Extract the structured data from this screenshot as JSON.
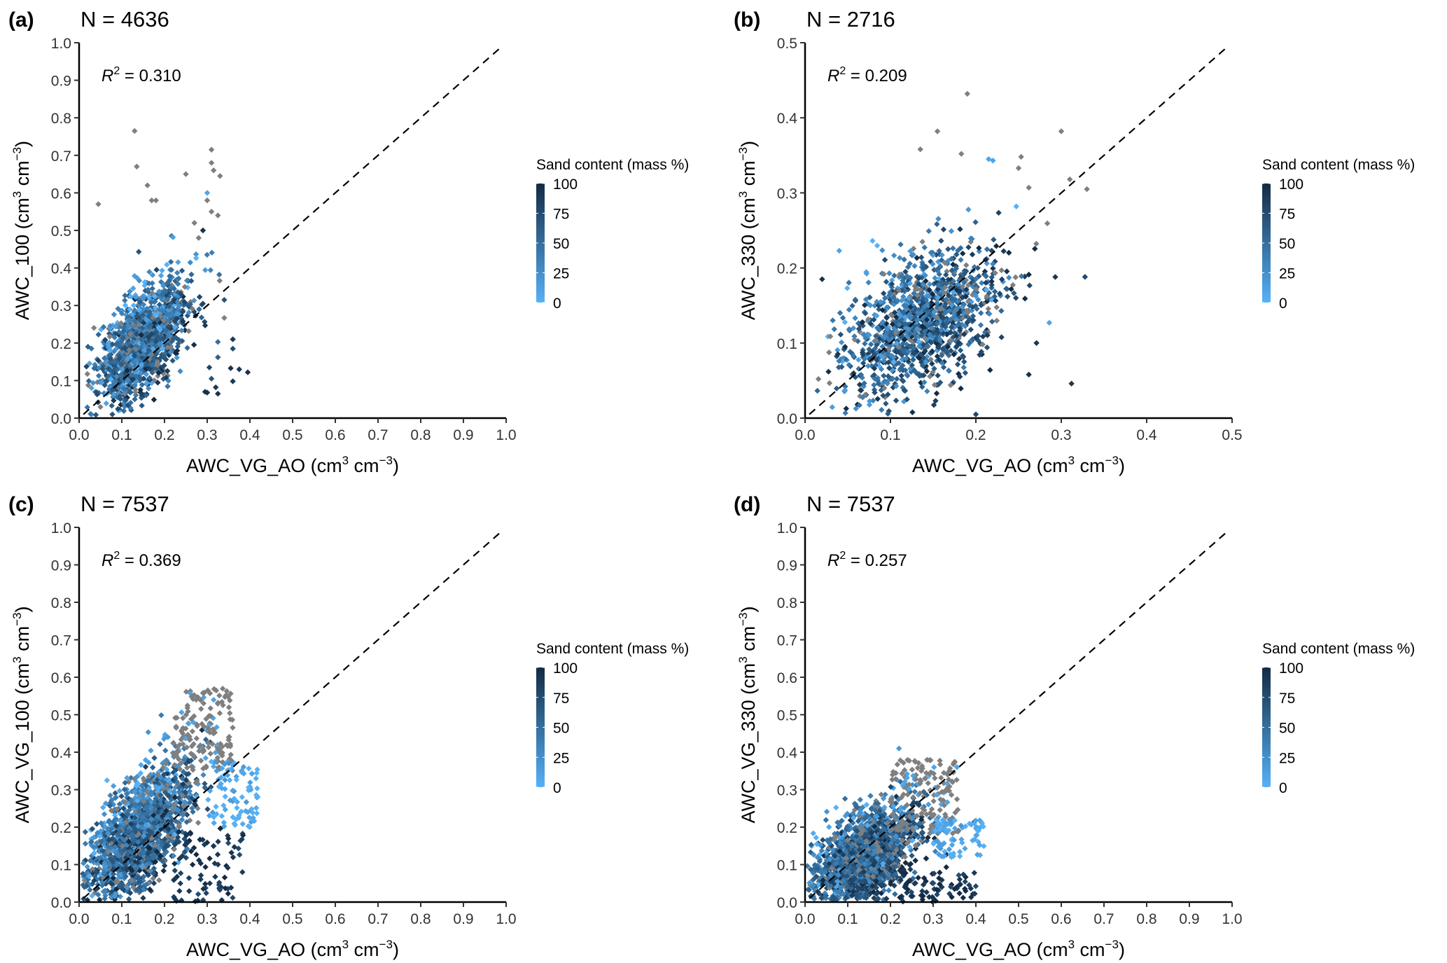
{
  "figure": {
    "colorbar": {
      "title": "Sand content (mass %)",
      "ticks": [
        "100",
        "75",
        "50",
        "25",
        "0"
      ],
      "tick_values": [
        100,
        75,
        50,
        25,
        0
      ],
      "low_color": "#56B1F7",
      "high_color": "#132B43",
      "na_color": "#7F7F7F"
    },
    "reference_line": "1:1 dashed"
  },
  "chart_data": [
    {
      "type": "scatter",
      "panel": "(a)",
      "n_label": "N = 4636",
      "r2_label": "= 0.310",
      "r2": 0.31,
      "xlabel": "AWC_VG_AO (cm³ cm⁻³)",
      "ylabel": "AWC_100 (cm³ cm⁻³)",
      "xlim": [
        0,
        1.0
      ],
      "ylim": [
        0,
        1.0
      ],
      "xticks": [
        "0.0",
        "0.1",
        "0.2",
        "0.3",
        "0.4",
        "0.5",
        "0.6",
        "0.7",
        "0.8",
        "0.9",
        "1.0"
      ],
      "yticks": [
        "0.0",
        "0.1",
        "0.2",
        "0.3",
        "0.4",
        "0.5",
        "0.6",
        "0.7",
        "0.8",
        "0.9",
        "1.0"
      ],
      "grid": false,
      "legend": "right",
      "cloud": {
        "x_mean": 0.15,
        "y_mean": 0.2,
        "x_sd": 0.05,
        "y_sd": 0.08,
        "corr": 0.56,
        "n_render": 1400
      },
      "outliers": [
        {
          "x": 0.045,
          "y": 0.57,
          "sand": null
        },
        {
          "x": 0.13,
          "y": 0.765,
          "sand": null
        },
        {
          "x": 0.135,
          "y": 0.67,
          "sand": null
        },
        {
          "x": 0.16,
          "y": 0.62,
          "sand": null
        },
        {
          "x": 0.17,
          "y": 0.58,
          "sand": null
        },
        {
          "x": 0.18,
          "y": 0.58,
          "sand": null
        },
        {
          "x": 0.25,
          "y": 0.65,
          "sand": null
        },
        {
          "x": 0.31,
          "y": 0.715,
          "sand": null
        },
        {
          "x": 0.31,
          "y": 0.68,
          "sand": null
        },
        {
          "x": 0.315,
          "y": 0.66,
          "sand": null
        },
        {
          "x": 0.33,
          "y": 0.645,
          "sand": null
        },
        {
          "x": 0.3,
          "y": 0.6,
          "sand": 8
        },
        {
          "x": 0.3,
          "y": 0.58,
          "sand": null
        },
        {
          "x": 0.31,
          "y": 0.55,
          "sand": null
        },
        {
          "x": 0.325,
          "y": 0.54,
          "sand": null
        },
        {
          "x": 0.29,
          "y": 0.5,
          "sand": 95
        },
        {
          "x": 0.27,
          "y": 0.52,
          "sand": null
        },
        {
          "x": 0.28,
          "y": 0.48,
          "sand": null
        },
        {
          "x": 0.34,
          "y": 0.315,
          "sand": 70
        },
        {
          "x": 0.34,
          "y": 0.267,
          "sand": null
        },
        {
          "x": 0.36,
          "y": 0.21,
          "sand": 90
        },
        {
          "x": 0.36,
          "y": 0.185,
          "sand": 75
        },
        {
          "x": 0.375,
          "y": 0.13,
          "sand": 90
        },
        {
          "x": 0.395,
          "y": 0.122,
          "sand": 95
        },
        {
          "x": 0.355,
          "y": 0.133,
          "sand": 95
        },
        {
          "x": 0.36,
          "y": 0.098,
          "sand": 90
        },
        {
          "x": 0.325,
          "y": 0.065,
          "sand": 95
        },
        {
          "x": 0.32,
          "y": 0.082,
          "sand": 90
        },
        {
          "x": 0.31,
          "y": 0.105,
          "sand": 70
        },
        {
          "x": 0.305,
          "y": 0.135,
          "sand": 80
        },
        {
          "x": 0.325,
          "y": 0.162,
          "sand": 60
        },
        {
          "x": 0.325,
          "y": 0.203,
          "sand": 50
        },
        {
          "x": 0.29,
          "y": 0.305,
          "sand": 80
        },
        {
          "x": 0.3,
          "y": 0.068,
          "sand": 95
        },
        {
          "x": 0.295,
          "y": 0.07,
          "sand": 95
        }
      ]
    },
    {
      "type": "scatter",
      "panel": "(b)",
      "n_label": "N = 2716",
      "r2_label": "= 0.209",
      "r2": 0.209,
      "xlabel": "AWC_VG_AO (cm³ cm⁻³)",
      "ylabel": "AWC_330 (cm³ cm⁻³)",
      "xlim": [
        0,
        0.5
      ],
      "ylim": [
        0,
        0.5
      ],
      "xticks": [
        "0.0",
        "0.1",
        "0.2",
        "0.3",
        "0.4",
        "0.5"
      ],
      "yticks": [
        "0.0",
        "0.1",
        "0.2",
        "0.3",
        "0.4",
        "0.5"
      ],
      "grid": false,
      "legend": "right",
      "cloud": {
        "x_mean": 0.135,
        "y_mean": 0.13,
        "x_sd": 0.045,
        "y_sd": 0.05,
        "corr": 0.46,
        "n_render": 1300
      },
      "outliers": [
        {
          "x": 0.19,
          "y": 0.432,
          "sand": null
        },
        {
          "x": 0.155,
          "y": 0.382,
          "sand": null
        },
        {
          "x": 0.135,
          "y": 0.358,
          "sand": null
        },
        {
          "x": 0.183,
          "y": 0.352,
          "sand": null
        },
        {
          "x": 0.3,
          "y": 0.382,
          "sand": null
        },
        {
          "x": 0.253,
          "y": 0.348,
          "sand": null
        },
        {
          "x": 0.25,
          "y": 0.333,
          "sand": null
        },
        {
          "x": 0.31,
          "y": 0.318,
          "sand": null
        },
        {
          "x": 0.262,
          "y": 0.307,
          "sand": null
        },
        {
          "x": 0.33,
          "y": 0.305,
          "sand": null
        },
        {
          "x": 0.215,
          "y": 0.345,
          "sand": 10
        },
        {
          "x": 0.22,
          "y": 0.343,
          "sand": 10
        },
        {
          "x": 0.02,
          "y": 0.185,
          "sand": 95
        },
        {
          "x": 0.293,
          "y": 0.188,
          "sand": 90
        },
        {
          "x": 0.312,
          "y": 0.046,
          "sand": 90
        },
        {
          "x": 0.271,
          "y": 0.1,
          "sand": 90
        },
        {
          "x": 0.262,
          "y": 0.058,
          "sand": 95
        },
        {
          "x": 0.2,
          "y": 0.005,
          "sand": 80
        },
        {
          "x": 0.286,
          "y": 0.127,
          "sand": 10
        },
        {
          "x": 0.04,
          "y": 0.223,
          "sand": 10
        }
      ]
    },
    {
      "type": "scatter",
      "panel": "(c)",
      "n_label": "N = 7537",
      "r2_label": "= 0.369",
      "r2": 0.369,
      "xlabel": "AWC_VG_AO (cm³ cm⁻³)",
      "ylabel": "AWC_VG_100 (cm³ cm⁻³)",
      "xlim": [
        0,
        1.0
      ],
      "ylim": [
        0,
        1.0
      ],
      "xticks": [
        "0.0",
        "0.1",
        "0.2",
        "0.3",
        "0.4",
        "0.5",
        "0.6",
        "0.7",
        "0.8",
        "0.9",
        "1.0"
      ],
      "yticks": [
        "0.0",
        "0.1",
        "0.2",
        "0.3",
        "0.4",
        "0.5",
        "0.6",
        "0.7",
        "0.8",
        "0.9",
        "1.0"
      ],
      "grid": false,
      "legend": "right",
      "cloud": {
        "x_mean": 0.14,
        "y_mean": 0.18,
        "x_sd": 0.06,
        "y_sd": 0.09,
        "corr": 0.62,
        "n_render": 1800
      },
      "clusters": [
        {
          "label": "gray fine-texture arm",
          "x_range": [
            0.22,
            0.36
          ],
          "y_range": [
            0.35,
            0.57
          ],
          "sand": null,
          "n_render": 160
        },
        {
          "label": "light-blue arm",
          "x_range": [
            0.3,
            0.42
          ],
          "y_range": [
            0.2,
            0.38
          ],
          "sand": 5,
          "n_render": 90
        },
        {
          "label": "dark sandy tail",
          "x_range": [
            0.22,
            0.4
          ],
          "y_range": [
            0.0,
            0.19
          ],
          "sand": 92,
          "n_render": 80
        }
      ]
    },
    {
      "type": "scatter",
      "panel": "(d)",
      "n_label": "N = 7537",
      "r2_label": "= 0.257",
      "r2": 0.257,
      "xlabel": "AWC_VG_AO (cm³ cm⁻³)",
      "ylabel": "AWC_VG_330 (cm³ cm⁻³)",
      "xlim": [
        0,
        1.0
      ],
      "ylim": [
        0,
        1.0
      ],
      "xticks": [
        "0.0",
        "0.1",
        "0.2",
        "0.3",
        "0.4",
        "0.5",
        "0.6",
        "0.7",
        "0.8",
        "0.9",
        "1.0"
      ],
      "yticks": [
        "0.0",
        "0.1",
        "0.2",
        "0.3",
        "0.4",
        "0.5",
        "0.6",
        "0.7",
        "0.8",
        "0.9",
        "1.0"
      ],
      "grid": false,
      "legend": "right",
      "cloud": {
        "x_mean": 0.14,
        "y_mean": 0.12,
        "x_sd": 0.06,
        "y_sd": 0.07,
        "corr": 0.5,
        "n_render": 1800
      },
      "clusters": [
        {
          "label": "gray fine-texture arm",
          "x_range": [
            0.2,
            0.36
          ],
          "y_range": [
            0.18,
            0.38
          ],
          "sand": null,
          "n_render": 150
        },
        {
          "label": "light-blue arm",
          "x_range": [
            0.3,
            0.42
          ],
          "y_range": [
            0.12,
            0.22
          ],
          "sand": 5,
          "n_render": 80
        },
        {
          "label": "dark sandy tail",
          "x_range": [
            0.22,
            0.4
          ],
          "y_range": [
            0.0,
            0.08
          ],
          "sand": 92,
          "n_render": 70
        }
      ],
      "outliers": [
        {
          "x": 0.22,
          "y": 0.41,
          "sand": 20
        }
      ]
    }
  ]
}
